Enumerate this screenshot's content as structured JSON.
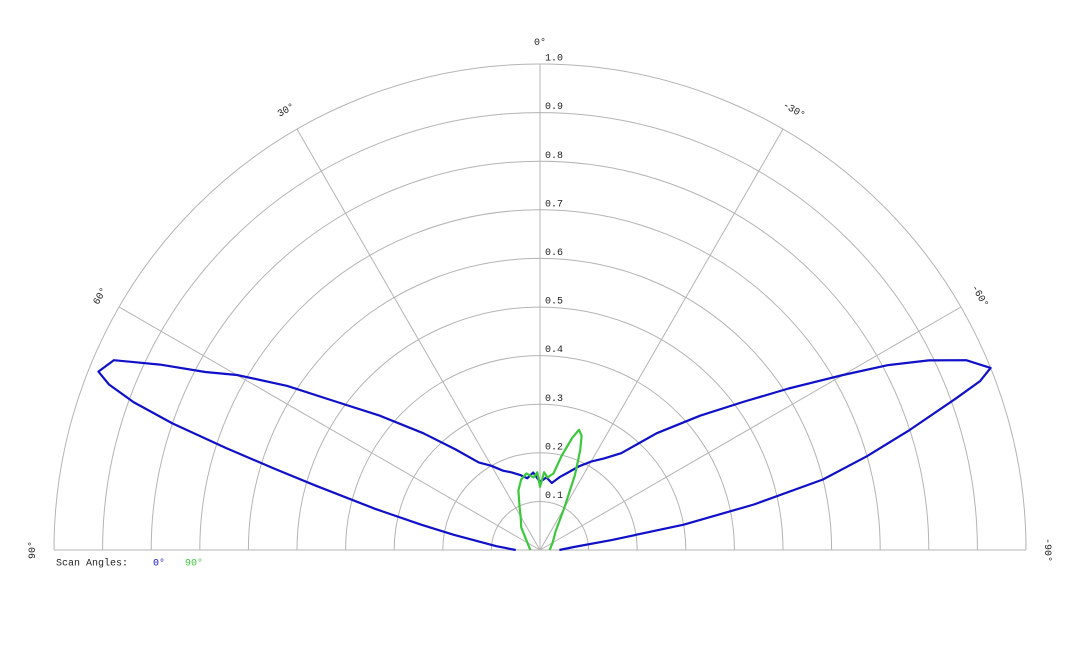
{
  "chart_data": {
    "type": "polar",
    "legend_title": "Scan Angles:",
    "xlim": [
      -90,
      90
    ],
    "xticks": [
      {
        "value": 90,
        "label": "90°"
      },
      {
        "value": 60,
        "label": "60°"
      },
      {
        "value": 30,
        "label": "30°"
      },
      {
        "value": 0,
        "label": "0°"
      },
      {
        "value": -30,
        "label": "-30°"
      },
      {
        "value": -60,
        "label": "-60°"
      },
      {
        "value": -90,
        "label": "-90°"
      }
    ],
    "ylim": [
      0,
      1
    ],
    "yticks": [
      0.1,
      0.2,
      0.3,
      0.4,
      0.5,
      0.6,
      0.7,
      0.8,
      0.9,
      {
        "value": 1,
        "label": "1.0"
      }
    ],
    "grid": true,
    "series": [
      {
        "name": "0°",
        "color": "#1010c8",
        "x": [
          90,
          85,
          80,
          78,
          76,
          74,
          73,
          72,
          71,
          70,
          69,
          68,
          66,
          64,
          62,
          60,
          57,
          54,
          50,
          45,
          40,
          35,
          30,
          25,
          20,
          15,
          10,
          5,
          0,
          -5,
          -10,
          -15,
          -20,
          -25,
          -30,
          -35,
          -40,
          -45,
          -50,
          -54,
          -57,
          -60,
          -62,
          -64,
          -66,
          -68,
          -69,
          -70,
          -72,
          -74,
          -76,
          -78,
          -80,
          -82,
          -85,
          -90
        ],
        "values": [
          0.05,
          0.09,
          0.18,
          0.25,
          0.35,
          0.48,
          0.57,
          0.68,
          0.8,
          0.89,
          0.95,
          0.98,
          0.96,
          0.87,
          0.78,
          0.72,
          0.62,
          0.52,
          0.43,
          0.34,
          0.27,
          0.22,
          0.2,
          0.18,
          0.17,
          0.16,
          0.15,
          0.16,
          0.14,
          0.15,
          0.14,
          0.155,
          0.17,
          0.19,
          0.21,
          0.23,
          0.26,
          0.34,
          0.43,
          0.52,
          0.61,
          0.72,
          0.81,
          0.89,
          0.96,
          1.0,
          0.97,
          0.91,
          0.8,
          0.7,
          0.6,
          0.45,
          0.3,
          0.15,
          0.07,
          0.04
        ]
      },
      {
        "name": "90°",
        "color": "#3cc83c",
        "x": [
          90,
          60,
          40,
          30,
          25,
          20,
          15,
          10,
          5,
          2,
          0,
          -3,
          -6,
          -10,
          -13,
          -16,
          -18,
          -20,
          -22,
          -25,
          -30,
          -40,
          -60,
          -90
        ],
        "values": [
          0.02,
          0.03,
          0.06,
          0.08,
          0.1,
          0.13,
          0.15,
          0.16,
          0.15,
          0.16,
          0.13,
          0.16,
          0.15,
          0.16,
          0.2,
          0.24,
          0.26,
          0.25,
          0.22,
          0.17,
          0.1,
          0.05,
          0.03,
          0.02
        ]
      }
    ]
  }
}
